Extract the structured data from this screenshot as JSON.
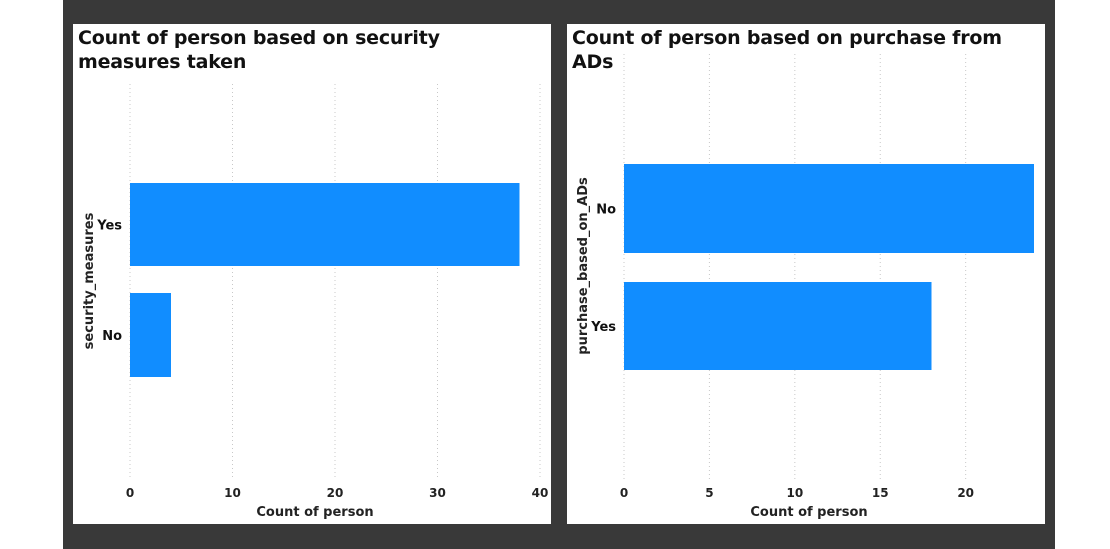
{
  "chart_data": [
    {
      "type": "bar",
      "orientation": "horizontal",
      "title": "Count of person based on security measures taken",
      "categories": [
        "Yes",
        "No"
      ],
      "values": [
        38,
        4
      ],
      "xlabel": "Count of person",
      "ylabel": "security_measures",
      "xlim": [
        0,
        40
      ],
      "xticks": [
        "0",
        "10",
        "20",
        "30",
        "40"
      ],
      "grid": true,
      "bar_color": "#118DFF"
    },
    {
      "type": "bar",
      "orientation": "horizontal",
      "title": "Count of person based on purchase from ADs",
      "categories": [
        "No",
        "Yes"
      ],
      "values": [
        24,
        18
      ],
      "xlabel": "Count of person",
      "ylabel": "purchase_based_on_ADs",
      "xlim": [
        0,
        24
      ],
      "xticks": [
        "0",
        "5",
        "10",
        "15",
        "20"
      ],
      "grid": true,
      "bar_color": "#118DFF"
    }
  ]
}
